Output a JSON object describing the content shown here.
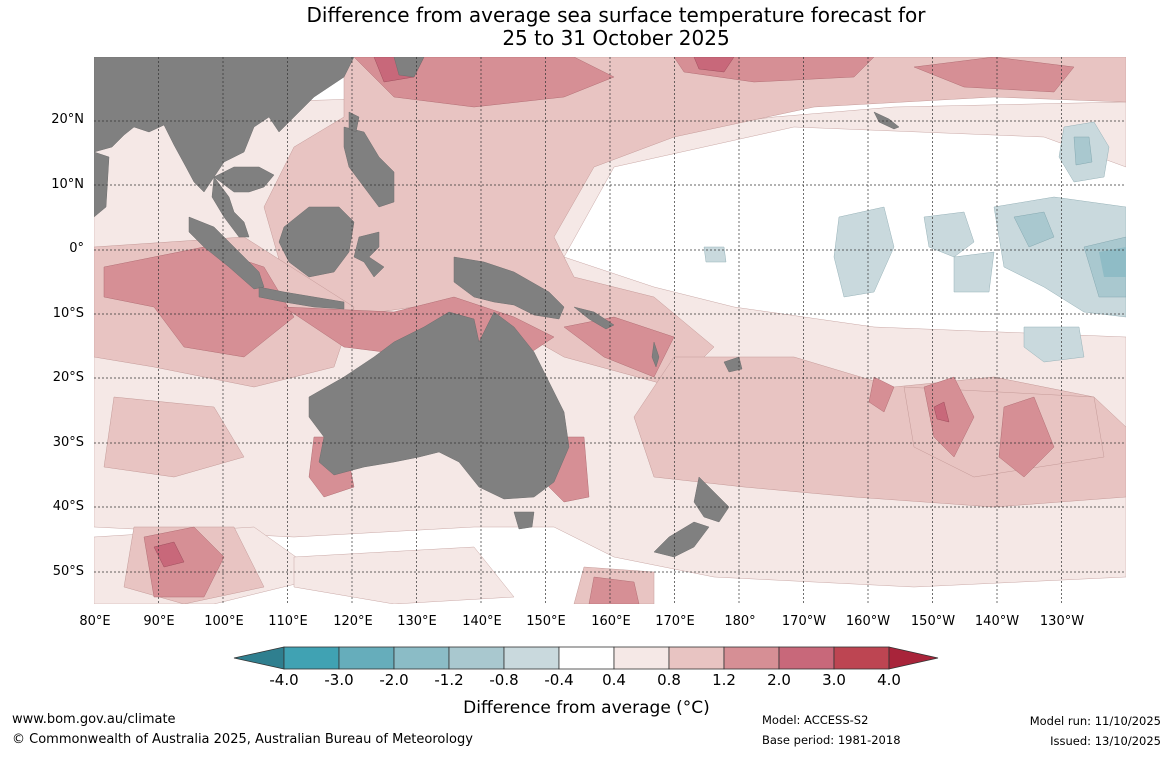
{
  "title": {
    "line1": "Difference from average sea surface temperature forecast for",
    "line2": "25 to 31 October 2025"
  },
  "map": {
    "latitude_labels": [
      "20°N",
      "10°N",
      "0°",
      "10°S",
      "20°S",
      "30°S",
      "40°S",
      "50°S"
    ],
    "longitude_labels": [
      "80°E",
      "90°E",
      "100°E",
      "110°E",
      "120°E",
      "130°E",
      "140°E",
      "150°E",
      "160°E",
      "170°E",
      "180°",
      "170°W",
      "160°W",
      "150°W",
      "140°W",
      "130°W"
    ],
    "colors": {
      "land": "#808080",
      "ocean_neutral": "#ffffff",
      "warm_0_4": "#f5e8e6",
      "warm_0_8": "#e8c4c2",
      "warm_1_2": "#d68f95",
      "warm_2_0": "#c8687a",
      "cool_0_4": "#c9d9dd",
      "cool_0_8": "#a9c8cf",
      "cool_1_2": "#8fbcc6"
    }
  },
  "legend": {
    "title": "Difference from average (°C)",
    "ticks": [
      "-4.0",
      "-3.0",
      "-2.0",
      "-1.2",
      "-0.8",
      "-0.4",
      "0.4",
      "0.8",
      "1.2",
      "2.0",
      "3.0",
      "4.0"
    ],
    "bins": [
      {
        "label": "< -4.0",
        "color": "#2f7f8f"
      },
      {
        "label": "-4.0 to -3.0",
        "color": "#40a2b3"
      },
      {
        "label": "-3.0 to -2.0",
        "color": "#66adbb"
      },
      {
        "label": "-2.0 to -1.2",
        "color": "#8bbcc6"
      },
      {
        "label": "-1.2 to -0.8",
        "color": "#a9c8cf"
      },
      {
        "label": "-0.8 to -0.4",
        "color": "#c9d9dd"
      },
      {
        "label": "-0.4 to 0.4",
        "color": "#ffffff"
      },
      {
        "label": "0.4 to 0.8",
        "color": "#f5e8e6"
      },
      {
        "label": "0.8 to 1.2",
        "color": "#e8c4c2"
      },
      {
        "label": "1.2 to 2.0",
        "color": "#d68f95"
      },
      {
        "label": "2.0 to 3.0",
        "color": "#c8687a"
      },
      {
        "label": "3.0 to 4.0",
        "color": "#bd4552"
      },
      {
        "label": "> 4.0",
        "color": "#a8243a"
      }
    ]
  },
  "footer": {
    "website": "www.bom.gov.au/climate",
    "copyright": "© Commonwealth of Australia 2025, Australian Bureau of Meteorology",
    "model": "Model: ACCESS-S2",
    "base_period": "Base period: 1981-2018",
    "model_run": "Model run: 11/10/2025",
    "issued": "Issued: 13/10/2025"
  }
}
